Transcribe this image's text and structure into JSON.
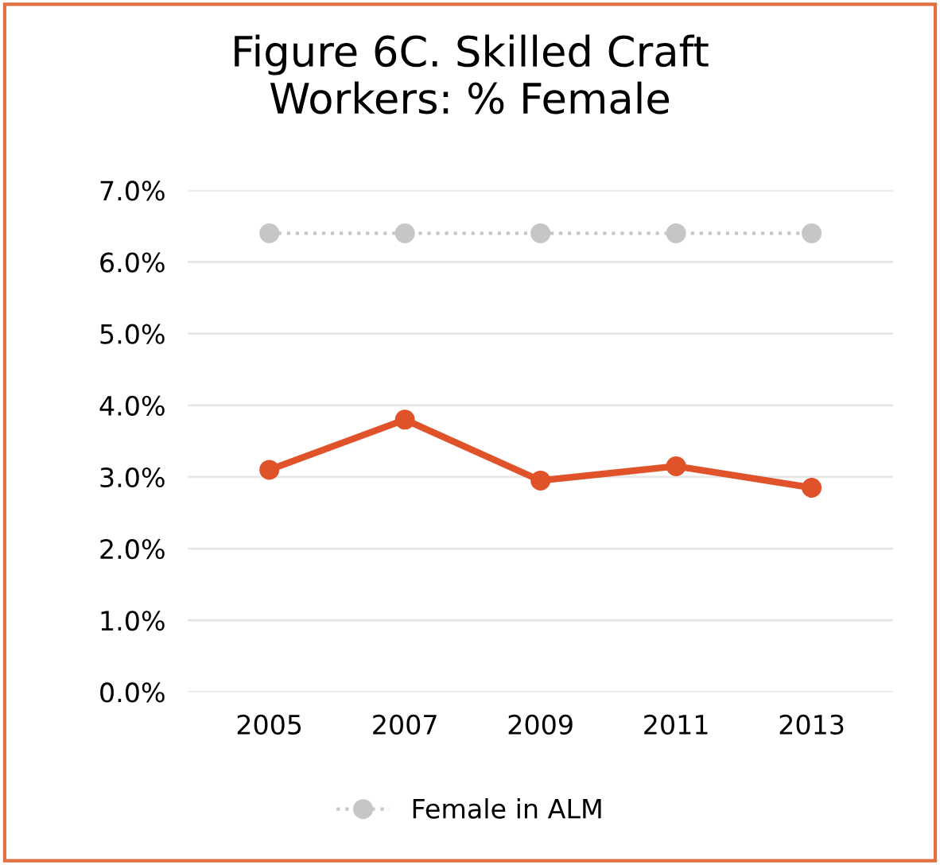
{
  "chart_data": {
    "type": "line",
    "title": "Figure 6C. Skilled Craft\nWorkers: % Female",
    "categories": [
      "2005",
      "2007",
      "2009",
      "2011",
      "2013"
    ],
    "series": [
      {
        "color": "#e0532a",
        "values": [
          3.1,
          3.8,
          2.95,
          3.15,
          2.85
        ],
        "line_style": "solid"
      },
      {
        "name": "Female in ALM",
        "color": "#c6c6c6",
        "values": [
          6.4,
          6.4,
          6.4,
          6.4,
          6.4
        ],
        "line_style": "dotted"
      }
    ],
    "ylim": [
      0,
      7
    ],
    "yticks": [
      {
        "value": 0,
        "label": "0.0%"
      },
      {
        "value": 1,
        "label": "1.0%"
      },
      {
        "value": 2,
        "label": "2.0%"
      },
      {
        "value": 3,
        "label": "3.0%"
      },
      {
        "value": 4,
        "label": "4.0%"
      },
      {
        "value": 5,
        "label": "5.0%"
      },
      {
        "value": 6,
        "label": "6.0%"
      },
      {
        "value": 7,
        "label": "7.0%"
      }
    ],
    "grid": "y",
    "legend": "bottom",
    "marker": "circle"
  }
}
